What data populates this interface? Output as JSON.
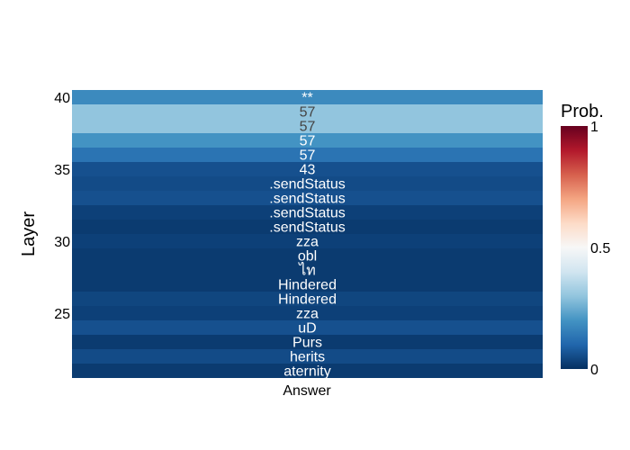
{
  "chart_data": {
    "type": "heatmap",
    "title": "",
    "xlabel": "",
    "ylabel": "Layer",
    "x_categories": [
      "Answer"
    ],
    "ylim": [
      20.5,
      40.5
    ],
    "y_ticks": [
      25,
      30,
      35,
      40
    ],
    "colorbar": {
      "title": "Prob.",
      "range": [
        0,
        1
      ],
      "ticks": [
        0,
        0.5,
        1
      ],
      "tick_labels": [
        "0",
        "0.5",
        "1"
      ],
      "colorscale": [
        "#053061",
        "#2166ac",
        "#4393c3",
        "#92c5de",
        "#d1e5f0",
        "#f7f7f7",
        "#fddbc7",
        "#f4a582",
        "#d6604d",
        "#b2182b",
        "#67001f"
      ]
    },
    "rows": [
      {
        "layer": 40,
        "token": "**",
        "prob": 0.18
      },
      {
        "layer": 39,
        "token": "57",
        "prob": 0.3
      },
      {
        "layer": 38,
        "token": "57",
        "prob": 0.3
      },
      {
        "layer": 37,
        "token": "57",
        "prob": 0.2
      },
      {
        "layer": 36,
        "token": "57",
        "prob": 0.13
      },
      {
        "layer": 35,
        "token": "43",
        "prob": 0.06
      },
      {
        "layer": 34,
        "token": ".sendStatus",
        "prob": 0.05
      },
      {
        "layer": 33,
        "token": ".sendStatus",
        "prob": 0.06
      },
      {
        "layer": 32,
        "token": ".sendStatus",
        "prob": 0.03
      },
      {
        "layer": 31,
        "token": ".sendStatus",
        "prob": 0.02
      },
      {
        "layer": 30,
        "token": "zza",
        "prob": 0.03
      },
      {
        "layer": 29,
        "token": "obl",
        "prob": 0.02
      },
      {
        "layer": 28,
        "token": "ไท",
        "prob": 0.02
      },
      {
        "layer": 27,
        "token": "Hindered",
        "prob": 0.02
      },
      {
        "layer": 26,
        "token": "Hindered",
        "prob": 0.04
      },
      {
        "layer": 25,
        "token": "zza",
        "prob": 0.03
      },
      {
        "layer": 24,
        "token": "uD",
        "prob": 0.06
      },
      {
        "layer": 23,
        "token": "Purs",
        "prob": 0.02
      },
      {
        "layer": 22,
        "token": "herits",
        "prob": 0.05
      },
      {
        "layer": 21,
        "token": "aternity",
        "prob": 0.02
      }
    ]
  }
}
